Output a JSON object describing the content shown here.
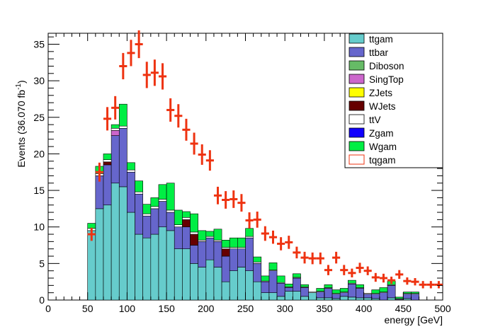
{
  "chart_data": {
    "type": "bar",
    "stacked": true,
    "xlabel": "energy [GeV]",
    "ylabel": "Events (36.070 fb⁻¹)",
    "ylabel_main": "Events (36.070 fb",
    "ylabel_sup": "-1",
    "ylabel_end": ")",
    "xlim": [
      0,
      500
    ],
    "ylim": [
      0,
      36.5
    ],
    "bin_width": 10,
    "x_bin_edges_start": 50,
    "x_ticks": [
      "0",
      "50",
      "100",
      "150",
      "200",
      "250",
      "300",
      "350",
      "400",
      "450",
      "500"
    ],
    "y_ticks": [
      "0",
      "5",
      "10",
      "15",
      "20",
      "25",
      "30",
      "35"
    ],
    "legend_position": "top-right",
    "series": [
      {
        "name": "ttgam",
        "color": "#66cccc",
        "values": [
          9.5,
          12.5,
          13,
          16,
          15.5,
          12,
          9,
          8.5,
          9,
          10,
          9.5,
          7,
          7,
          5,
          4.5,
          5.5,
          4.5,
          2.5,
          4,
          4.5,
          4,
          2.5,
          1,
          1,
          0.5,
          1.2,
          1.2,
          0.5,
          1,
          0.3,
          0.3,
          0.2,
          0.5,
          0.4,
          0.3,
          0.3,
          0.2,
          0,
          0.3,
          0,
          0.2,
          0
        ]
      },
      {
        "name": "ttbar",
        "color": "#6666cc",
        "values": [
          0,
          4.5,
          5.5,
          6.5,
          8,
          5.5,
          5.5,
          3,
          3.5,
          3.5,
          2.5,
          3,
          3,
          2.5,
          3.5,
          3,
          3.5,
          3.5,
          3,
          2.5,
          4.5,
          2.5,
          1.5,
          3,
          1.8,
          0.5,
          1.8,
          1.2,
          0,
          0.8,
          1.3,
          0.6,
          0.5,
          1.8,
          1.3,
          0.5,
          0.6,
          1,
          1.7,
          0.1,
          0.6,
          0.8
        ]
      },
      {
        "name": "Diboson",
        "color": "#66bb66",
        "values": [
          0,
          0,
          0,
          0,
          0,
          0,
          0,
          0,
          0,
          0,
          0,
          0,
          0,
          0,
          0,
          0,
          0,
          0,
          0,
          0,
          0,
          0,
          0,
          0,
          0,
          0,
          0,
          0,
          0,
          0,
          0,
          0,
          0,
          0,
          0,
          0,
          0,
          0,
          0,
          0,
          0,
          0
        ]
      },
      {
        "name": "SingTop",
        "color": "#cc66cc",
        "values": [
          0,
          0,
          0,
          0.7,
          0,
          0,
          0,
          0,
          0,
          0,
          0,
          0,
          0,
          0,
          0,
          0,
          0,
          0,
          0,
          0,
          0,
          0,
          0,
          0,
          0,
          0,
          0,
          0,
          0,
          0,
          0,
          0,
          0,
          0,
          0,
          0,
          0,
          0,
          0,
          0,
          0,
          0
        ]
      },
      {
        "name": "ZJets",
        "color": "#ffff00",
        "values": [
          0,
          0,
          0,
          0,
          0,
          0,
          0,
          0,
          0,
          0,
          0,
          0,
          0,
          0,
          0,
          0,
          0,
          0,
          0,
          0,
          0,
          0,
          0,
          0,
          0,
          0,
          0,
          0,
          0,
          0,
          0,
          0,
          0,
          0,
          0,
          0,
          0,
          0,
          0,
          0,
          0,
          0
        ]
      },
      {
        "name": "WJets",
        "color": "#660000",
        "values": [
          0,
          0,
          0.4,
          0,
          0,
          0,
          0,
          0,
          0,
          0,
          0,
          0,
          1,
          1.5,
          0,
          0,
          0,
          1,
          0,
          0,
          0,
          0,
          0,
          0,
          0,
          0,
          0,
          0,
          0,
          0,
          0,
          0,
          0,
          0,
          0,
          0,
          0,
          0,
          0,
          0,
          0,
          0
        ]
      },
      {
        "name": "ttV",
        "color": "#ffffff",
        "values": [
          0.3,
          0.3,
          0.3,
          0.3,
          0.3,
          0.3,
          0.3,
          0.3,
          0.3,
          0.3,
          0.3,
          0.3,
          0.3,
          0.3,
          0.2,
          0.2,
          0.2,
          0.2,
          0.2,
          0.2,
          0.2,
          0.2,
          0.1,
          0.1,
          0.1,
          0.1,
          0.1,
          0.1,
          0.1,
          0.1,
          0.1,
          0.1,
          0.1,
          0.1,
          0.1,
          0.1,
          0.1,
          0.1,
          0.1,
          0.1,
          0.1,
          0.1
        ]
      },
      {
        "name": "Zgam",
        "color": "#1100ff",
        "values": [
          0,
          0,
          0,
          0,
          0,
          0,
          0,
          0,
          0,
          0,
          0,
          0,
          0,
          0,
          0,
          0,
          0,
          0,
          0,
          0,
          0,
          0,
          0,
          0,
          0,
          0,
          0,
          0,
          0,
          0,
          0,
          0,
          0,
          0,
          0,
          0,
          0,
          0,
          0,
          0,
          0,
          0
        ]
      },
      {
        "name": "Wgam",
        "color": "#00ee44",
        "values": [
          0.7,
          1,
          0.8,
          0.5,
          3,
          1,
          1.5,
          1.3,
          1.2,
          2,
          3.7,
          2,
          0.8,
          2.5,
          1.3,
          0.7,
          1.5,
          1,
          1.3,
          1.3,
          1.1,
          0.7,
          0.7,
          1,
          0.9,
          0.4,
          0.5,
          0.3,
          0,
          0.4,
          0.4,
          0.5,
          0.5,
          0.4,
          0.4,
          0,
          0.5,
          0.6,
          0.5,
          0.2,
          0.2,
          0.2
        ]
      }
    ],
    "overlay": {
      "name": "tqgam",
      "color": "#ee3311",
      "style": "points-with-error-bars",
      "x": [
        55,
        65,
        75,
        85,
        95,
        105,
        115,
        125,
        135,
        145,
        155,
        165,
        175,
        185,
        195,
        205,
        215,
        225,
        235,
        245,
        255,
        265,
        275,
        285,
        295,
        305,
        315,
        325,
        335,
        345,
        355,
        365,
        375,
        385,
        395,
        405,
        415,
        425,
        435,
        445,
        455,
        465,
        475,
        485,
        495
      ],
      "y": [
        9,
        17.5,
        24.8,
        26.3,
        32,
        33.8,
        35,
        30.8,
        31.1,
        30.6,
        26,
        25.2,
        23.3,
        21.4,
        19.9,
        19.1,
        14.3,
        13.7,
        13.8,
        13.3,
        10.9,
        11,
        9.1,
        8.6,
        7.7,
        7.9,
        6.5,
        5.8,
        5.7,
        5.7,
        4.1,
        5.8,
        4.1,
        3.7,
        4.4,
        4,
        3.1,
        3,
        2.7,
        3.5,
        2.6,
        2.5,
        2.1,
        2.1,
        2.1
      ],
      "yerr": [
        0.9,
        1.3,
        1.6,
        1.6,
        1.8,
        1.8,
        1.9,
        1.8,
        1.8,
        1.8,
        1.6,
        1.6,
        1.5,
        1.5,
        1.4,
        1.4,
        1.2,
        1.2,
        1.2,
        1.2,
        1.1,
        1.1,
        1,
        0.9,
        0.9,
        0.9,
        0.8,
        0.8,
        0.8,
        0.8,
        0.7,
        0.8,
        0.7,
        0.6,
        0.7,
        0.6,
        0.6,
        0.6,
        0.5,
        0.6,
        0.5,
        0.5,
        0.5,
        0.5,
        0.5
      ]
    }
  }
}
